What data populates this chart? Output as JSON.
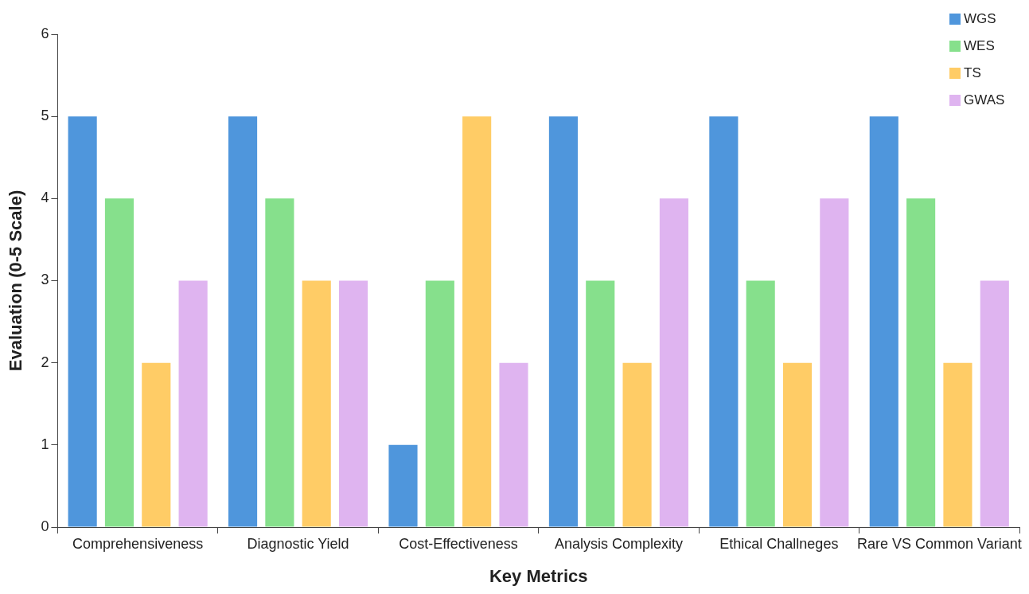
{
  "chart_data": {
    "type": "bar",
    "xlabel": "Key Metrics",
    "ylabel": "Evaluation (0-5 Scale)",
    "categories": [
      "Comprehensiveness",
      "Diagnostic Yield",
      "Cost-Effectiveness",
      "Analysis Complexity",
      "Ethical Challneges",
      "Rare VS Common Variant"
    ],
    "series": [
      {
        "name": "WGS",
        "color": "#4f96dc",
        "values": [
          5,
          5,
          1,
          5,
          5,
          5
        ]
      },
      {
        "name": "WES",
        "color": "#86e08c",
        "values": [
          4,
          4,
          3,
          3,
          3,
          4
        ]
      },
      {
        "name": "TS",
        "color": "#ffcc66",
        "values": [
          2,
          3,
          5,
          2,
          2,
          2
        ]
      },
      {
        "name": "GWAS",
        "color": "#dfb4f0",
        "values": [
          3,
          3,
          2,
          4,
          4,
          3
        ]
      }
    ],
    "ylim": [
      0,
      6
    ],
    "yticks": [
      0,
      1,
      2,
      3,
      4,
      5,
      6
    ],
    "grid": false,
    "legend": "top right"
  }
}
